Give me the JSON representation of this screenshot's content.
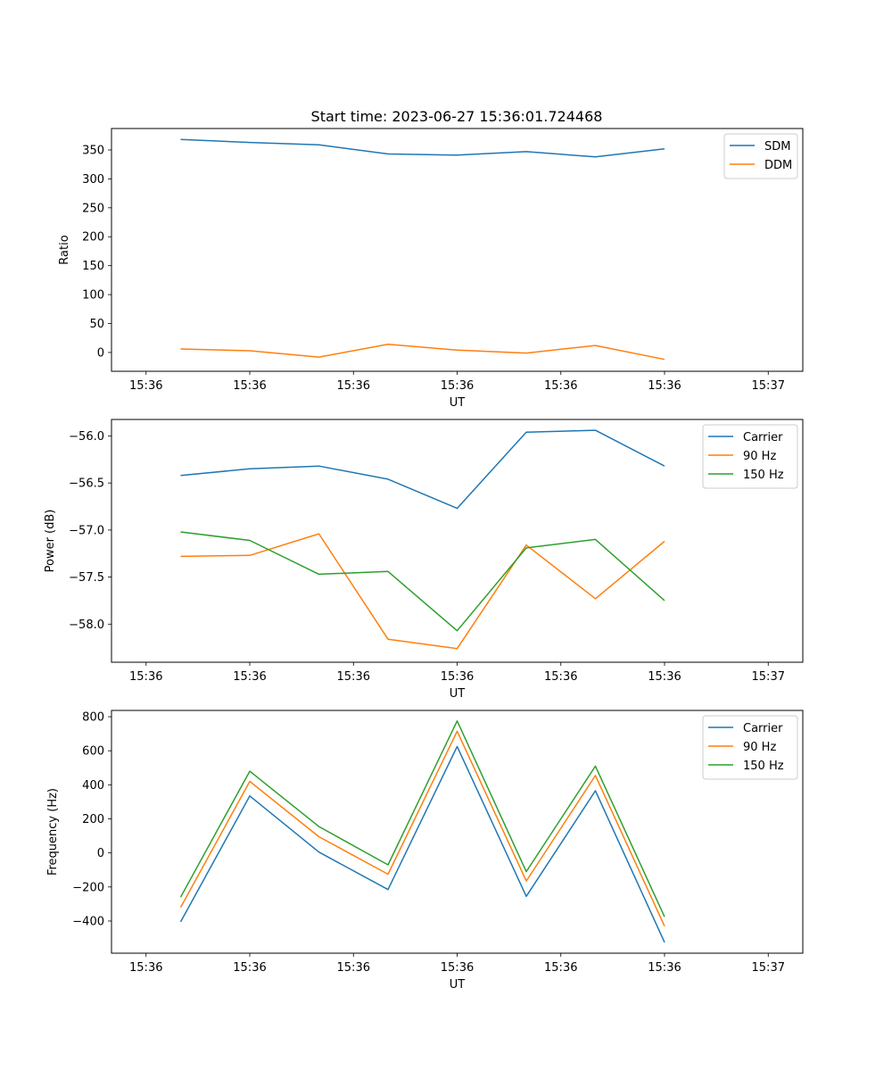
{
  "title": "Start time: 2023-06-27 15:36:01.724468",
  "x_tick_labels": [
    "15:36",
    "15:36",
    "15:36",
    "15:36",
    "15:36",
    "15:36",
    "15:37"
  ],
  "chart_data": [
    {
      "type": "line",
      "xlabel": "UT",
      "ylabel": "Ratio",
      "yticks": [
        0,
        50,
        100,
        150,
        200,
        250,
        300,
        350
      ],
      "ylim": [
        -32.5,
        387
      ],
      "xlim": [
        -0.5,
        9.5
      ],
      "x": [
        0.5,
        1.5,
        2.5,
        3.5,
        4.5,
        5.5,
        6.5,
        7.5
      ],
      "legend_position": "upper right",
      "series": [
        {
          "name": "SDM",
          "color": "#1f77b4",
          "values": [
            368,
            363,
            359,
            343,
            341,
            347,
            338,
            352
          ]
        },
        {
          "name": "DDM",
          "color": "#ff7f0e",
          "values": [
            6,
            3,
            -8,
            14,
            4,
            -1,
            12,
            -12
          ]
        }
      ]
    },
    {
      "type": "line",
      "xlabel": "UT",
      "ylabel": "Power (dB)",
      "yticks": [
        -58.0,
        -57.5,
        -57.0,
        -56.5,
        -56.0
      ],
      "ytick_labels": [
        "−58.0",
        "−57.5",
        "−57.0",
        "−56.5",
        "−56.0"
      ],
      "ylim": [
        -58.405,
        -55.825
      ],
      "xlim": [
        -0.5,
        9.5
      ],
      "x": [
        0.5,
        1.5,
        2.5,
        3.5,
        4.5,
        5.5,
        6.5,
        7.5
      ],
      "legend_position": "upper right",
      "series": [
        {
          "name": "Carrier",
          "color": "#1f77b4",
          "values": [
            -56.42,
            -56.35,
            -56.32,
            -56.46,
            -56.77,
            -55.96,
            -55.94,
            -56.32
          ]
        },
        {
          "name": "90 Hz",
          "color": "#ff7f0e",
          "values": [
            -57.28,
            -57.27,
            -57.04,
            -58.16,
            -58.26,
            -57.16,
            -57.73,
            -57.12
          ]
        },
        {
          "name": "150 Hz",
          "color": "#2ca02c",
          "values": [
            -57.02,
            -57.11,
            -57.47,
            -57.44,
            -58.07,
            -57.19,
            -57.1,
            -57.75
          ]
        }
      ]
    },
    {
      "type": "line",
      "xlabel": "UT",
      "ylabel": "Frequency (Hz)",
      "yticks": [
        -400,
        -200,
        0,
        200,
        400,
        600,
        800
      ],
      "ytick_labels": [
        "−400",
        "−200",
        "0",
        "200",
        "400",
        "600",
        "800"
      ],
      "ylim": [
        -589,
        837
      ],
      "xlim": [
        -0.5,
        9.5
      ],
      "x": [
        0.5,
        1.5,
        2.5,
        3.5,
        4.5,
        5.5,
        6.5,
        7.5
      ],
      "legend_position": "upper right",
      "series": [
        {
          "name": "Carrier",
          "color": "#1f77b4",
          "values": [
            -405,
            335,
            5,
            -215,
            625,
            -255,
            365,
            -525
          ]
        },
        {
          "name": "90 Hz",
          "color": "#ff7f0e",
          "values": [
            -320,
            420,
            95,
            -125,
            715,
            -165,
            455,
            -430
          ]
        },
        {
          "name": "150 Hz",
          "color": "#2ca02c",
          "values": [
            -260,
            480,
            155,
            -70,
            775,
            -110,
            510,
            -375
          ]
        }
      ]
    }
  ]
}
